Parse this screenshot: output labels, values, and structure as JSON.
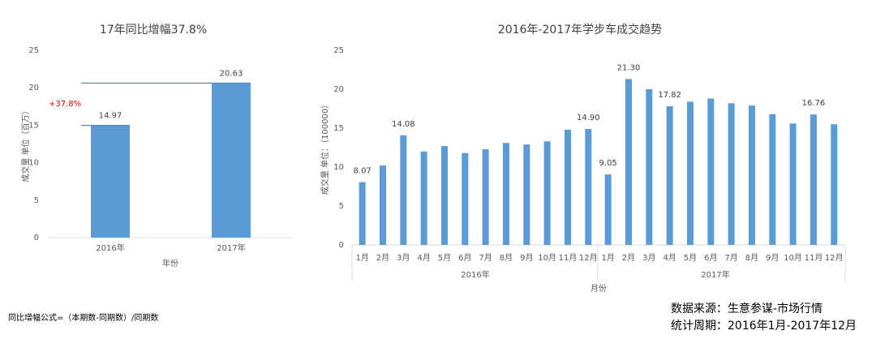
{
  "chart_data": [
    {
      "type": "bar",
      "title": "17年同比增幅37.8%",
      "categories": [
        "2016年",
        "2017年"
      ],
      "values": [
        14.97,
        20.63
      ],
      "data_labels": [
        "14.97",
        "20.63"
      ],
      "xlabel": "年份",
      "ylabel": "成交量   单位（百万）",
      "ylim": [
        0,
        25
      ],
      "yticks": [
        "0",
        "5",
        "10",
        "15",
        "20",
        "25"
      ],
      "annotation": "+37.8%",
      "grid": false,
      "bar_color": "#5b9bd5"
    },
    {
      "type": "bar",
      "title": "2016年-2017年学步车成交趋势",
      "months": [
        "1月",
        "2月",
        "3月",
        "4月",
        "5月",
        "6月",
        "7月",
        "8月",
        "9月",
        "10月",
        "11月",
        "12月"
      ],
      "groups": [
        "2016年",
        "2017年"
      ],
      "values_2016": [
        8.07,
        10.2,
        14.08,
        12.0,
        12.7,
        11.8,
        12.3,
        13.1,
        12.9,
        13.3,
        14.8,
        14.9
      ],
      "values_2017": [
        9.05,
        21.3,
        20.0,
        17.82,
        18.4,
        18.8,
        18.2,
        17.9,
        16.8,
        15.6,
        16.76,
        15.5
      ],
      "data_labels": [
        {
          "group": 0,
          "index": 0,
          "text": "8.07"
        },
        {
          "group": 0,
          "index": 2,
          "text": "14.08"
        },
        {
          "group": 0,
          "index": 11,
          "text": "14.90"
        },
        {
          "group": 1,
          "index": 0,
          "text": "9.05"
        },
        {
          "group": 1,
          "index": 1,
          "text": "21.30"
        },
        {
          "group": 1,
          "index": 3,
          "text": "17.82"
        },
        {
          "group": 1,
          "index": 10,
          "text": "16.76"
        }
      ],
      "xlabel": "月份",
      "ylabel": "成交量  单位：（100000）",
      "ylim": [
        0,
        25
      ],
      "yticks": [
        "0",
        "5",
        "10",
        "15",
        "20",
        "25"
      ],
      "grid": false,
      "bar_color": "#5b9bd5"
    }
  ],
  "footer": {
    "formula": "同比增幅公式=（本期数-同期数）/同期数",
    "source": "数据来源：生意参谋-市场行情",
    "period": "统计周期：2016年1月-2017年12月"
  }
}
